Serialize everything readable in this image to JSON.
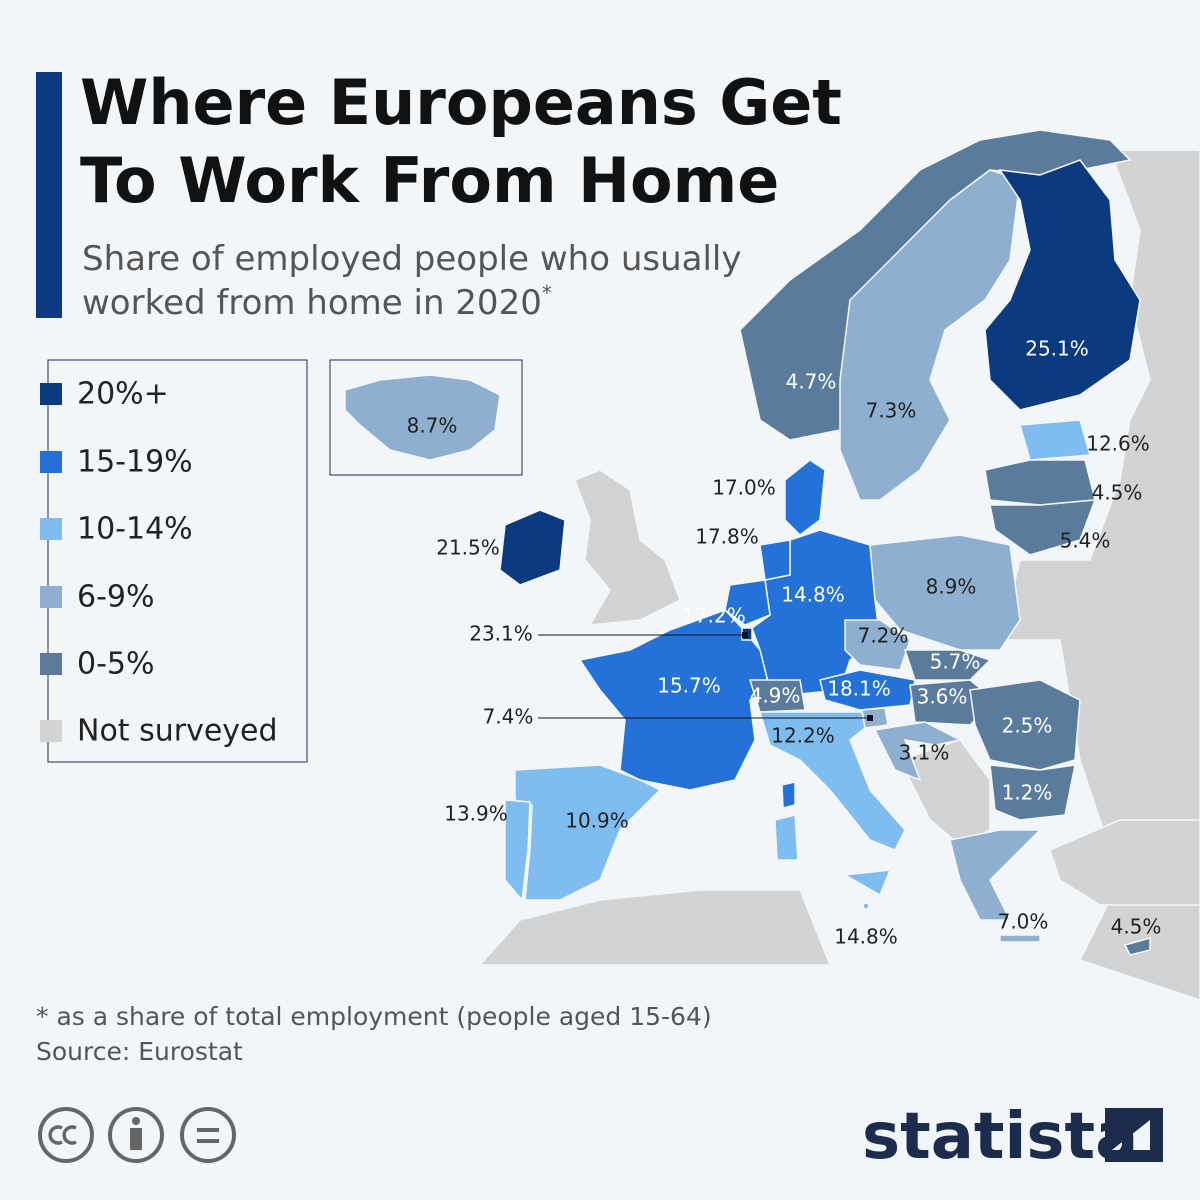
{
  "header": {
    "title_lines": [
      "Where Europeans Get",
      "To Work From Home"
    ],
    "subtitle_lines": [
      "Share of employed people who usually",
      "worked from home in 2020"
    ],
    "subtitle_mark": "*"
  },
  "legend": {
    "items": [
      {
        "label": "20%+",
        "color": "#0c3a7e"
      },
      {
        "label": "15-19%",
        "color": "#2472d8"
      },
      {
        "label": "10-14%",
        "color": "#7fbcef"
      },
      {
        "label": "6-9%",
        "color": "#8eafcf"
      },
      {
        "label": "0-5%",
        "color": "#5b7b9d"
      },
      {
        "label": "Not surveyed",
        "color": "#d3d3d3"
      }
    ]
  },
  "map": {
    "labels": [
      "25.1%",
      "4.7%",
      "7.3%",
      "8.7%",
      "12.6%",
      "4.5%",
      "5.4%",
      "17.0%",
      "21.5%",
      "17.8%",
      "14.8%",
      "8.9%",
      "17.2%",
      "23.1%",
      "7.2%",
      "5.7%",
      "15.7%",
      "4.9%",
      "18.1%",
      "3.6%",
      "7.4%",
      "2.5%",
      "12.2%",
      "3.1%",
      "1.2%",
      "13.9%",
      "10.9%",
      "14.8%",
      "7.0%",
      "4.5%"
    ]
  },
  "footer": {
    "note": "* as a share of total employment (people aged 15-64)",
    "source": "Source: Eurostat",
    "brand": "statista"
  }
}
